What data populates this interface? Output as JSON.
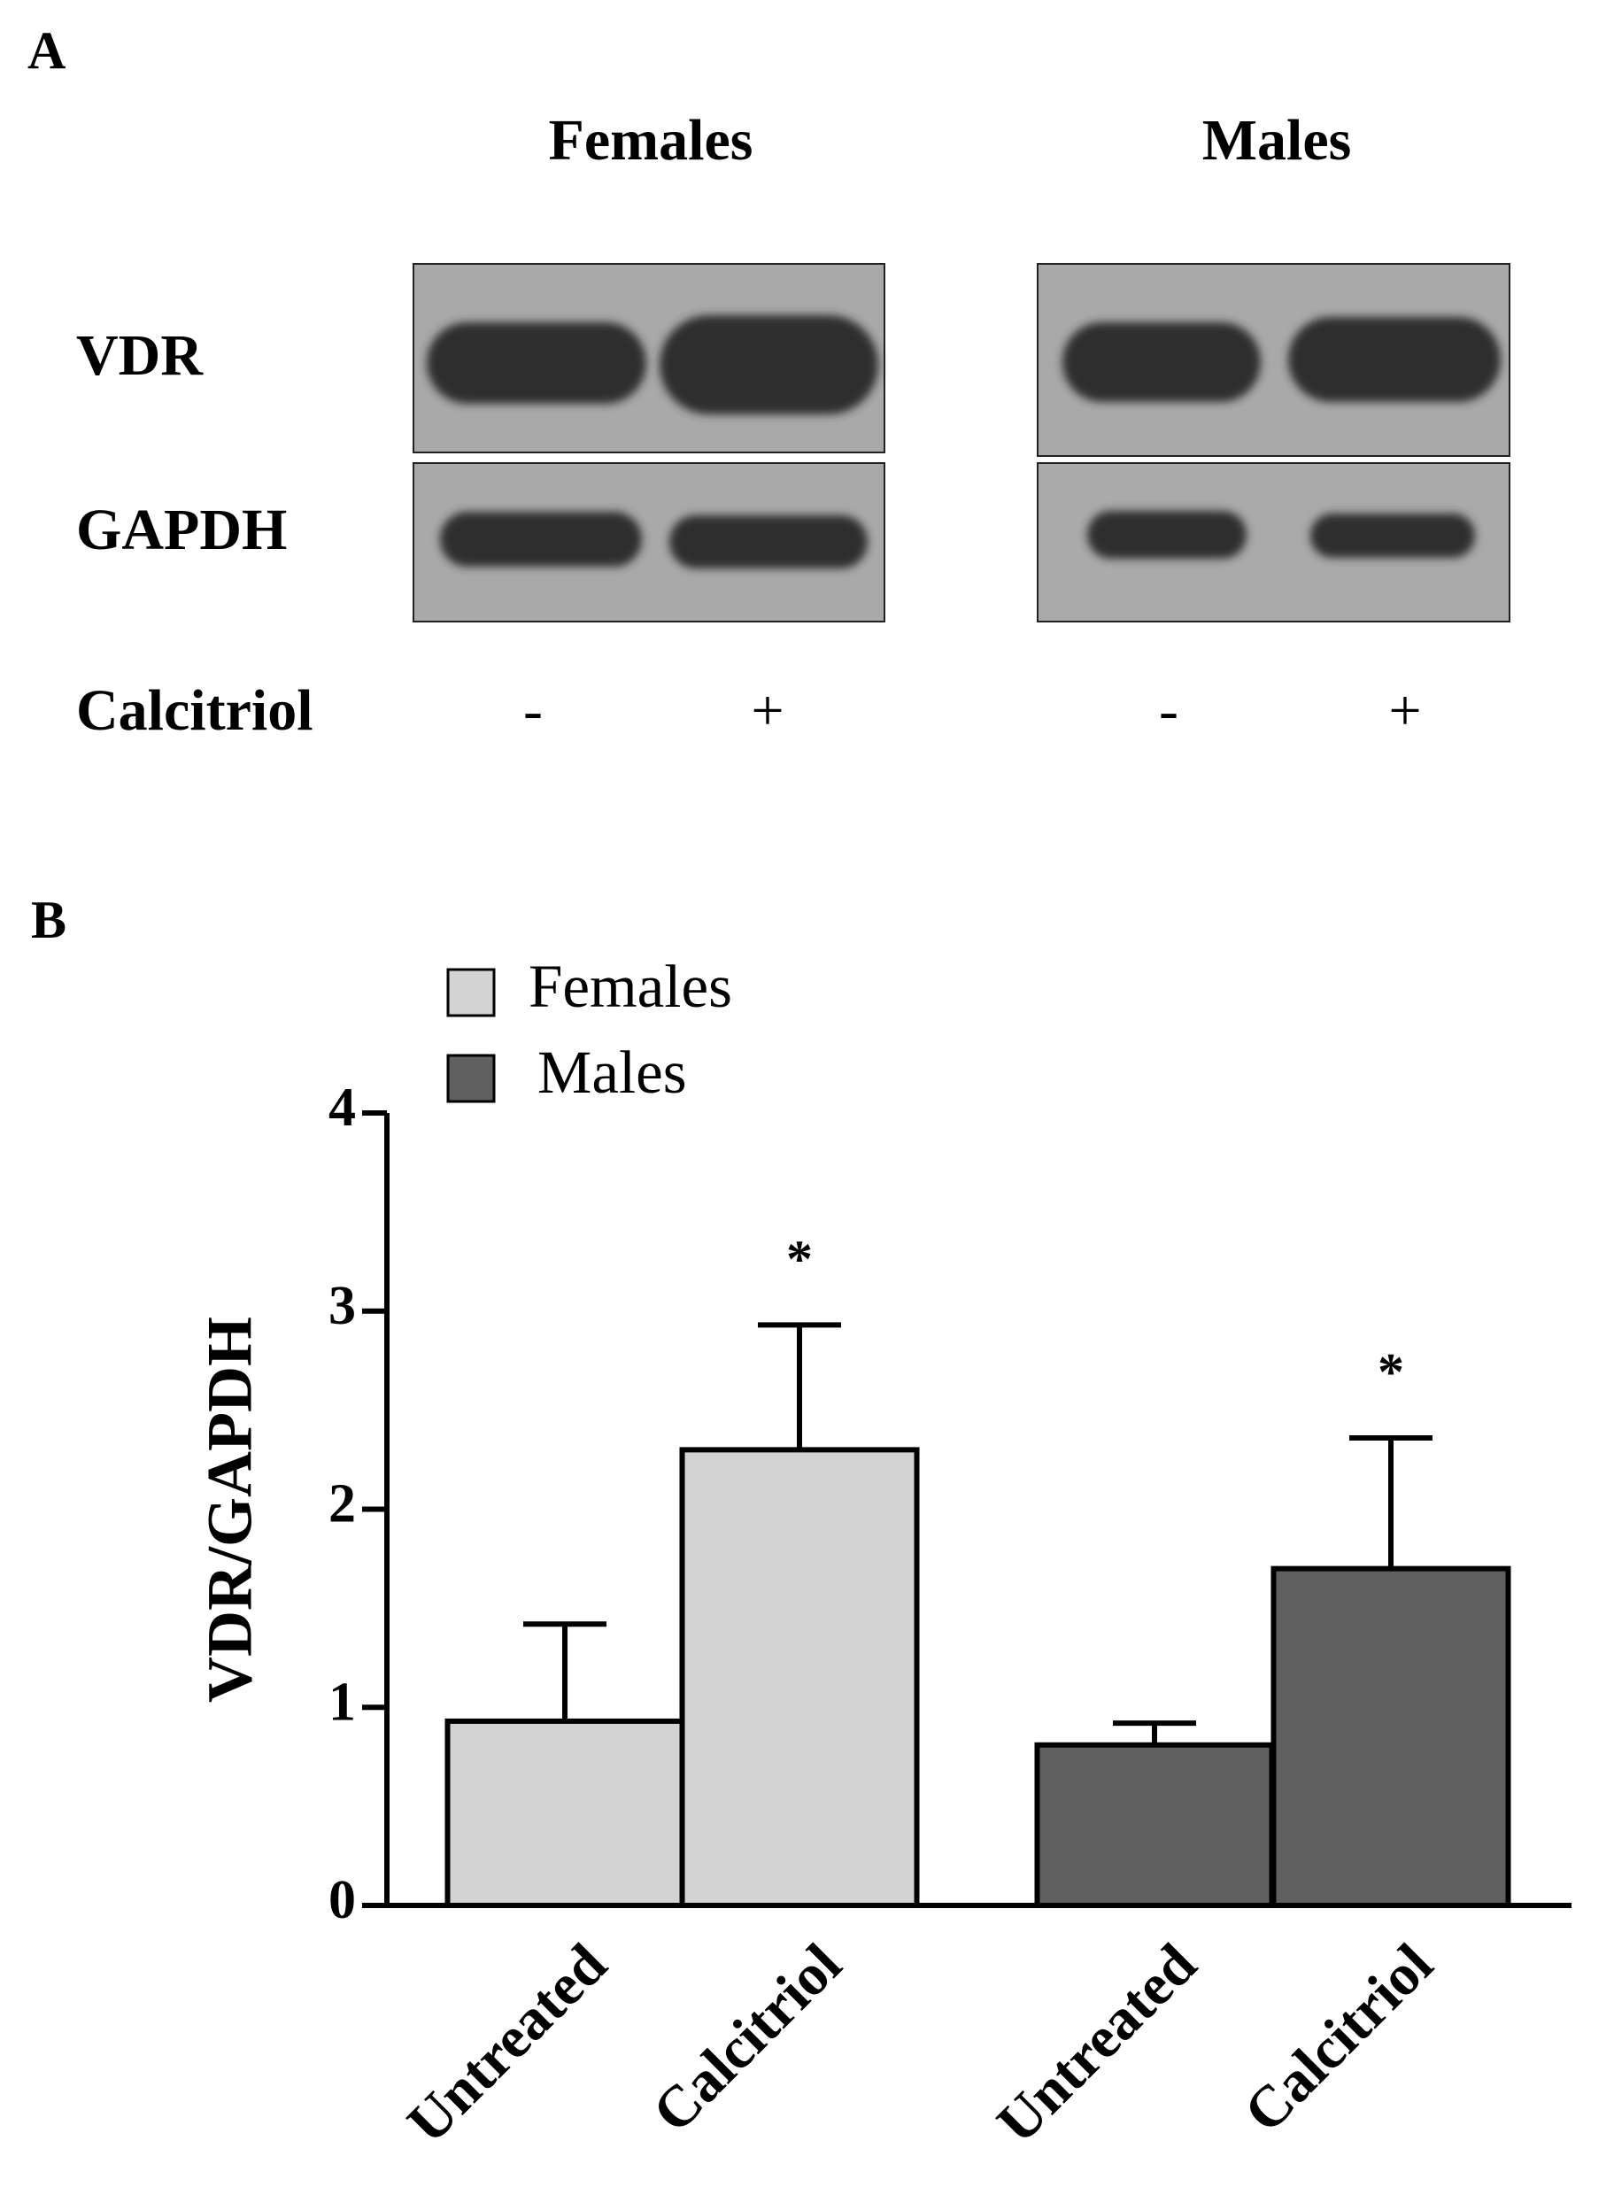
{
  "panel_a": {
    "label": "A",
    "groups": [
      "Females",
      "Males"
    ],
    "rows": [
      "VDR",
      "GAPDH"
    ],
    "treatment": {
      "label": "Calcitriol",
      "signs": [
        "-",
        "+",
        "-",
        "+"
      ]
    }
  },
  "chart_data": {
    "type": "bar",
    "panel_label": "B",
    "ylabel": "VDR/GAPDH",
    "categories": [
      "Untreated",
      "Calcitriol",
      "Untreated",
      "Calcitriol"
    ],
    "series": [
      {
        "name": "Females",
        "color": "#d3d3d3",
        "values": [
          0.93,
          2.3,
          null,
          null
        ],
        "errors": [
          0.49,
          0.63,
          null,
          null
        ],
        "significance": [
          null,
          "*",
          null,
          null
        ]
      },
      {
        "name": "Males",
        "color": "#606060",
        "values": [
          null,
          null,
          0.81,
          1.7
        ],
        "errors": [
          null,
          null,
          0.11,
          0.66
        ],
        "significance": [
          null,
          null,
          null,
          "*"
        ]
      }
    ],
    "ylim": [
      0,
      4
    ],
    "yticks": [
      0,
      1,
      2,
      3,
      4
    ]
  }
}
